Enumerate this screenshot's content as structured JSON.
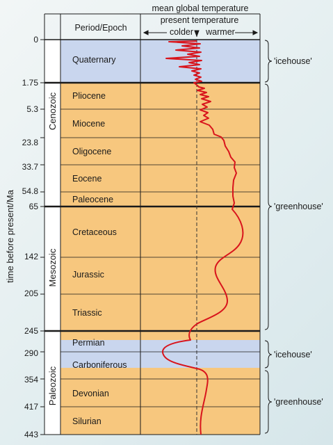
{
  "header": {
    "title": "mean global temperature",
    "period_epoch": "Period/Epoch",
    "present_temperature": "present temperature",
    "colder": "colder",
    "warmer": "warmer"
  },
  "axis": {
    "ylabel": "time before present/Ma",
    "ticks": [
      "0",
      "1.75",
      "5.3",
      "23.8",
      "33.7",
      "54.8",
      "65",
      "142",
      "205",
      "245",
      "290",
      "354",
      "417",
      "443"
    ]
  },
  "eras": [
    "Cenozoic",
    "Mesozoic",
    "Paleozoic"
  ],
  "periods": [
    "Quaternary",
    "Pliocene",
    "Miocene",
    "Oligocene",
    "Eocene",
    "Paleocene",
    "Cretaceous",
    "Jurassic",
    "Triassic",
    "Permian",
    "Carboniferous",
    "Devonian",
    "Silurian"
  ],
  "climate_states": [
    "'icehouse'",
    "'greenhouse'",
    "'icehouse'",
    "'greenhouse'"
  ],
  "colors": {
    "icehouse": "#c9d6ee",
    "greenhouse": "#f7c77e",
    "curve": "#d8141c",
    "background": "#e6f0f2"
  }
}
